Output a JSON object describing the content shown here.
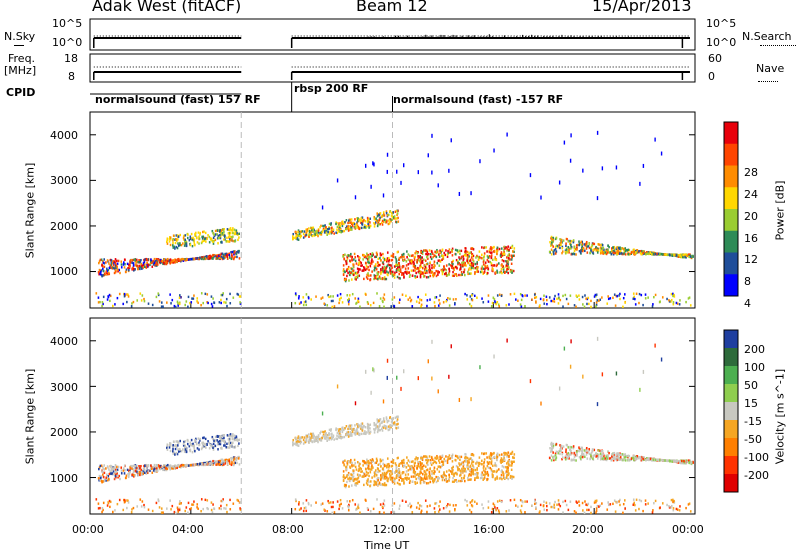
{
  "header": {
    "station": "Adak West (fitACF)",
    "beam": "Beam 12",
    "date": "15/Apr/2013"
  },
  "top_panels": {
    "nsky_label": "N.Sky",
    "nsearch_label": "N.Search",
    "freq_label_1": "Freq.",
    "freq_label_2": "[MHz]",
    "nave_label": "Nave",
    "cpid_label": "CPID",
    "nsky_left_ticks": [
      "10^5",
      "10^0"
    ],
    "nsky_right_ticks": [
      "10^5",
      "10^0"
    ],
    "freq_left_ticks": [
      "18",
      "8"
    ],
    "nave_right_ticks": [
      "60",
      "0"
    ],
    "cpid_segments": [
      {
        "label": "normalsound (fast) 157 RF",
        "start_hour": 0.0,
        "end_hour": 6.0
      },
      {
        "label": "rbsp 200 RF",
        "start_hour": 8.0,
        "end_hour": 12.0
      },
      {
        "label": "normalsound (fast) -157 RF",
        "start_hour": 12.0,
        "end_hour": 24.0
      }
    ]
  },
  "panels": {
    "power": {
      "ylabel": "Slant Range [km]",
      "colorbar_label": "Power [dB]",
      "colorbar_ticks": [
        "28",
        "24",
        "20",
        "16",
        "12",
        "8",
        "4"
      ],
      "colors": [
        "#e8000b",
        "#ff4500",
        "#ff8c00",
        "#ffd700",
        "#9acd32",
        "#2e8b57",
        "#1f4e9a",
        "#0000ff"
      ]
    },
    "velocity": {
      "ylabel": "Slant Range [km]",
      "colorbar_label": "Velocity [m s^-1]",
      "colorbar_ticks": [
        "200",
        "100",
        "50",
        "15",
        "-15",
        "-50",
        "-100",
        "-200"
      ],
      "colors": [
        "#1f3fa0",
        "#2e6b3b",
        "#4caf50",
        "#8fce4f",
        "#c8c8c0",
        "#f5a623",
        "#ff7f00",
        "#ff3300",
        "#e00000"
      ]
    }
  },
  "xaxis": {
    "label": "Time UT",
    "ticks": [
      "00:00",
      "04:00",
      "08:00",
      "12:00",
      "16:00",
      "20:00",
      "00:00"
    ]
  },
  "chart_data": {
    "type": "heatmap",
    "title": "Adak West (fitACF)  Beam 12  15/Apr/2013",
    "xlabel": "Time UT",
    "ylabel": "Slant Range [km]",
    "xlim_hours": [
      0,
      24
    ],
    "ylim_km": [
      200,
      4500
    ],
    "y_ticks": [
      1000,
      2000,
      3000,
      4000
    ],
    "data_gap_hours": [
      6.0,
      8.0
    ],
    "power_colorbar": {
      "label": "Power [dB]",
      "range": [
        0,
        32
      ],
      "ticks": [
        4,
        8,
        12,
        16,
        20,
        24,
        28
      ]
    },
    "velocity_colorbar": {
      "label": "Velocity [m s^-1]",
      "ticks": [
        -200,
        -100,
        -50,
        -15,
        15,
        50,
        100,
        200
      ]
    }
  }
}
